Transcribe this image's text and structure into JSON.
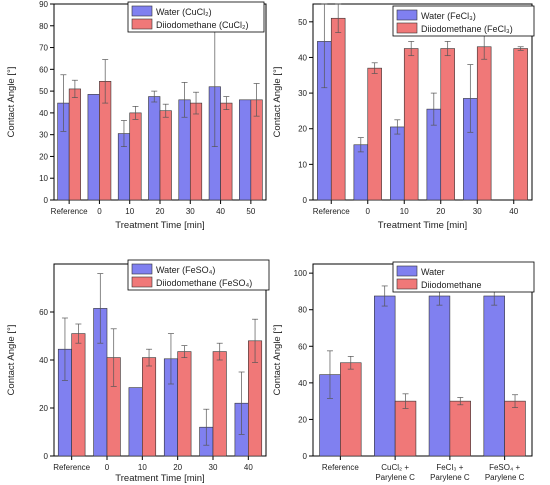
{
  "chart_data": [
    {
      "type": "bar",
      "ylabel": "Contact Angle [°]",
      "xlabel": "Treatment Time [min]",
      "categories": [
        "Reference",
        "0",
        "10",
        "20",
        "30",
        "40",
        "50"
      ],
      "ylim": [
        0,
        90
      ],
      "yticks": [
        0,
        10,
        20,
        30,
        40,
        50,
        60,
        70,
        80,
        90
      ],
      "legend_position": "top-right",
      "series": [
        {
          "name": "Water (CuCl₂)",
          "color": "#8080f0",
          "values": [
            44.5,
            48.5,
            30.5,
            47.5,
            46,
            52,
            46
          ],
          "errors": [
            13,
            0,
            6,
            2.5,
            8,
            27.5,
            0
          ]
        },
        {
          "name": "Diiodomethane (CuCl₂)",
          "color": "#f07878",
          "values": [
            51,
            54.5,
            40,
            41,
            44.5,
            44.5,
            46
          ],
          "errors": [
            4,
            10,
            3,
            3,
            5,
            3,
            7.5
          ]
        }
      ]
    },
    {
      "type": "bar",
      "ylabel": "Contact Angle [°]",
      "xlabel": "Treatment Time [min]",
      "categories": [
        "Reference",
        "0",
        "10",
        "20",
        "30",
        "40"
      ],
      "ylim": [
        0,
        55
      ],
      "yticks": [
        0,
        10,
        20,
        30,
        40,
        50
      ],
      "legend_position": "top-right",
      "series": [
        {
          "name": "Water (FeCl₃)",
          "color": "#8080f0",
          "values": [
            44.5,
            15.5,
            20.5,
            25.5,
            28.5,
            0
          ],
          "errors": [
            13,
            2,
            2,
            4.5,
            9.5,
            0
          ]
        },
        {
          "name": "Diiodomethane (FeCl₃)",
          "color": "#f07878",
          "values": [
            51,
            37,
            42.5,
            42.5,
            43,
            42.5
          ],
          "errors": [
            4,
            1.5,
            2,
            2,
            3.5,
            0.5
          ]
        }
      ]
    },
    {
      "type": "bar",
      "ylabel": "Contact Angle [°]",
      "xlabel": "Treatment Time [min]",
      "categories": [
        "Reference",
        "0",
        "10",
        "20",
        "30",
        "40"
      ],
      "ylim": [
        0,
        80
      ],
      "yticks": [
        0,
        20,
        40,
        60
      ],
      "legend_position": "top-right",
      "series": [
        {
          "name": "Water (FeSO₄)",
          "color": "#8080f0",
          "values": [
            44.5,
            61.5,
            28.5,
            40.5,
            12,
            22
          ],
          "errors": [
            13,
            14.5,
            0,
            10.5,
            7.5,
            13
          ]
        },
        {
          "name": "Diiodomethane (FeSO₄)",
          "color": "#f07878",
          "values": [
            51,
            41,
            41,
            43.5,
            43.5,
            48
          ],
          "errors": [
            4,
            12,
            3.5,
            2.5,
            3.5,
            9
          ]
        }
      ]
    },
    {
      "type": "bar",
      "ylabel": "Contact Angle [°]",
      "xlabel": "",
      "categories": [
        "Reference",
        "CuCl₂ +\nParylene C",
        "FeCl₃ +\nParylene C",
        "FeSO₄ +\nParylene C"
      ],
      "ylim": [
        0,
        105
      ],
      "yticks": [
        0,
        20,
        40,
        60,
        80,
        100
      ],
      "legend_position": "top-right",
      "series": [
        {
          "name": "Water",
          "color": "#8080f0",
          "values": [
            44.5,
            87.5,
            87.5,
            87.5
          ],
          "errors": [
            13,
            5.5,
            5,
            5
          ]
        },
        {
          "name": "Diiodomethane",
          "color": "#f07878",
          "values": [
            51,
            30,
            30,
            30
          ],
          "errors": [
            3.5,
            4,
            2,
            3.5
          ]
        }
      ]
    }
  ]
}
